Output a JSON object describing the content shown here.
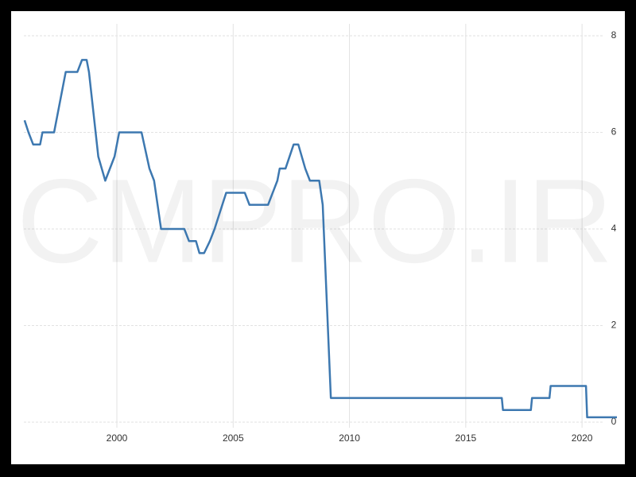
{
  "chart_data": {
    "type": "line",
    "watermark": "CMPRO.IR",
    "series": [
      {
        "color": "#3d78b0",
        "x": [
          1996.03,
          1996.2,
          1996.4,
          1996.7,
          1996.8,
          1997.3,
          1997.5,
          1997.7,
          1997.8,
          1998.3,
          1998.5,
          1998.7,
          1998.8,
          1999.2,
          1999.5,
          1999.9,
          2000.1,
          2001.06,
          2001.4,
          2001.6,
          2001.9,
          2002.9,
          2003.1,
          2003.4,
          2003.55,
          2003.75,
          2004.0,
          2004.2,
          2004.7,
          2005.5,
          2005.7,
          2006.5,
          2006.7,
          2006.9,
          2007.0,
          2007.25,
          2007.6,
          2007.8,
          2008.1,
          2008.3,
          2008.7,
          2008.85,
          2009.2,
          2016.55,
          2016.6,
          2017.8,
          2017.85,
          2018.6,
          2018.65,
          2020.17,
          2020.22,
          2021.5
        ],
        "values": [
          6.25,
          6.0,
          5.75,
          5.75,
          6.0,
          6.0,
          6.5,
          7.0,
          7.25,
          7.25,
          7.5,
          7.5,
          7.25,
          5.5,
          5.0,
          5.5,
          6.0,
          6.0,
          5.25,
          5.0,
          4.0,
          4.0,
          3.75,
          3.75,
          3.5,
          3.5,
          3.75,
          4.0,
          4.75,
          4.75,
          4.5,
          4.5,
          4.75,
          5.0,
          5.25,
          5.25,
          5.75,
          5.75,
          5.25,
          5.0,
          5.0,
          4.5,
          0.5,
          0.5,
          0.25,
          0.25,
          0.5,
          0.5,
          0.75,
          0.75,
          0.1,
          0.1
        ]
      }
    ],
    "xlim": [
      1996.0,
      2021.5
    ],
    "xticks": [
      2000,
      2005,
      2010,
      2015,
      2020
    ],
    "ylim": [
      0,
      8
    ],
    "yticks": [
      0,
      2,
      4,
      6,
      8
    ],
    "y_axis_side": "right",
    "grid": true
  }
}
